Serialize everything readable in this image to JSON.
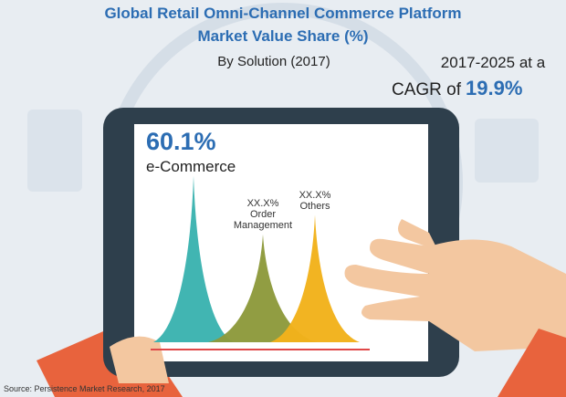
{
  "chart_data": {
    "type": "peak",
    "title": "Global Retail Omni-Channel Commerce Platform Market Value Share (%)",
    "subtitle": "By Solution (2017)",
    "cagr_period": "2017-2025 at a",
    "cagr_prefix": "CAGR of",
    "cagr_value": "19.9%",
    "source": "Source: Persistence Market Research, 2017",
    "categories": [
      "e-Commerce",
      "Order Management",
      "Others"
    ],
    "values": [
      60.1,
      39,
      46
    ],
    "value_labels": [
      "60.1%",
      "XX.X%",
      "XX.X%"
    ],
    "colors": [
      "#3bb3b0",
      "#8d9a3c",
      "#f2b21b"
    ]
  }
}
